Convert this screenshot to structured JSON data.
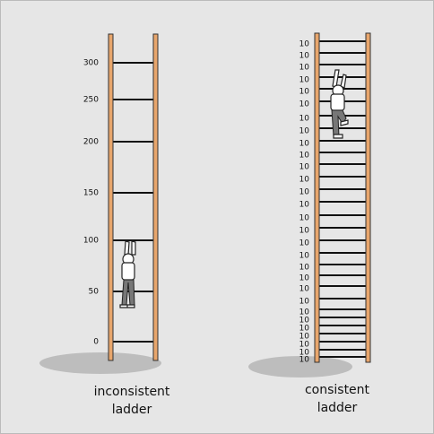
{
  "left_ladder": {
    "labels": [
      300,
      250,
      200,
      150,
      100,
      50,
      0
    ],
    "caption": [
      "inconsistent",
      "ladder"
    ]
  },
  "right_ladder": {
    "labels": [
      10,
      10,
      10,
      10,
      10,
      10,
      10,
      10,
      10,
      10,
      10,
      10,
      10,
      10,
      10,
      10,
      10,
      10,
      10,
      10,
      10,
      10,
      10,
      10,
      10,
      10,
      10,
      10,
      10
    ],
    "caption": [
      "consistent",
      "ladder"
    ]
  }
}
